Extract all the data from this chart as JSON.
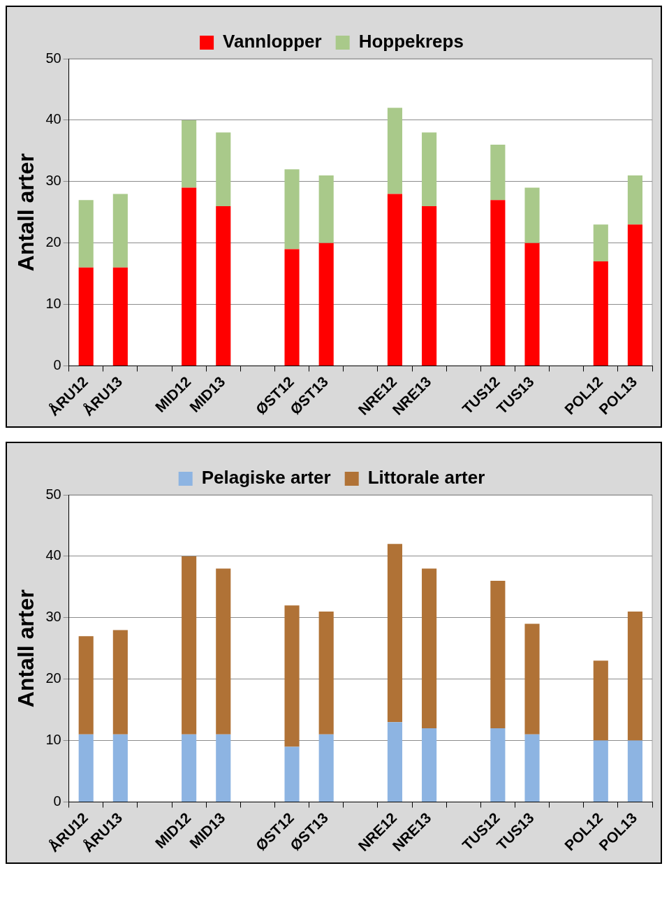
{
  "chart_data": [
    {
      "type": "bar",
      "stacked": true,
      "ylabel": "Antall arter",
      "categories": [
        "ÅRU12",
        "ÅRU13",
        null,
        "MID12",
        "MID13",
        null,
        "ØST12",
        "ØST13",
        null,
        "NRE12",
        "NRE13",
        null,
        "TUS12",
        "TUS13",
        null,
        "POL12",
        "POL13"
      ],
      "series": [
        {
          "name": "Vannlopper",
          "color": "#ff0000",
          "values": [
            16,
            16,
            null,
            29,
            26,
            null,
            19,
            20,
            null,
            28,
            26,
            null,
            27,
            20,
            null,
            17,
            23
          ]
        },
        {
          "name": "Hoppekreps",
          "color": "#a9c98a",
          "values": [
            11,
            12,
            null,
            11,
            12,
            null,
            13,
            11,
            null,
            14,
            12,
            null,
            9,
            9,
            null,
            6,
            8
          ]
        }
      ],
      "ylim": [
        0,
        50
      ],
      "yticks": [
        0,
        10,
        20,
        30,
        40,
        50
      ],
      "grid": "y",
      "legend": "top"
    },
    {
      "type": "bar",
      "stacked": true,
      "ylabel": "Antall arter",
      "categories": [
        "ÅRU12",
        "ÅRU13",
        null,
        "MID12",
        "MID13",
        null,
        "ØST12",
        "ØST13",
        null,
        "NRE12",
        "NRE13",
        null,
        "TUS12",
        "TUS13",
        null,
        "POL12",
        "POL13"
      ],
      "series": [
        {
          "name": "Pelagiske arter",
          "color": "#8db4e2",
          "values": [
            11,
            11,
            null,
            11,
            11,
            null,
            9,
            11,
            null,
            13,
            12,
            null,
            12,
            11,
            null,
            10,
            10
          ]
        },
        {
          "name": "Littorale arter",
          "color": "#b07236",
          "values": [
            16,
            17,
            null,
            29,
            27,
            null,
            23,
            20,
            null,
            29,
            26,
            null,
            24,
            18,
            null,
            13,
            21
          ]
        }
      ],
      "ylim": [
        0,
        50
      ],
      "yticks": [
        0,
        10,
        20,
        30,
        40,
        50
      ],
      "grid": "y",
      "legend": "top"
    }
  ]
}
